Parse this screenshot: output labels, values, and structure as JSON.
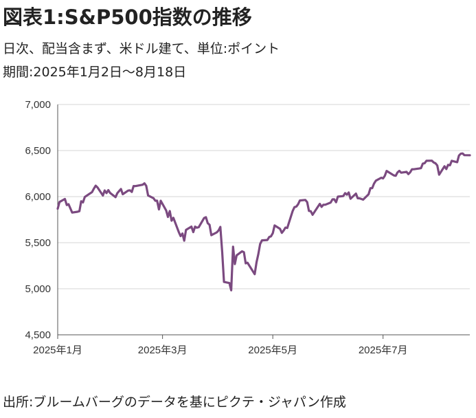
{
  "header": {
    "title": "図表1:S&P500指数の推移",
    "subtitle": "日次、配当含まず、米ドル建て、単位:ポイント",
    "period": "期間:2025年1月2日～8月18日"
  },
  "footer": {
    "source": "出所:ブルームバーグのデータを基にピクテ・ジャパン作成"
  },
  "colors": {
    "line": "#7b4a80",
    "axis": "#555555",
    "grid": "#d4d4d4"
  },
  "chart_data": {
    "type": "line",
    "ylim": [
      4500,
      7000
    ],
    "yticks": [
      4500,
      5000,
      5500,
      6000,
      6500,
      7000
    ],
    "ytick_labels": [
      "4,500",
      "5,000",
      "5,500",
      "6,000",
      "6,500",
      "7,000"
    ],
    "xlim": [
      "2025-01-02",
      "2025-08-18"
    ],
    "xticks": [
      {
        "date": "2025-01-01",
        "label": "2025年1月"
      },
      {
        "date": "2025-03-01",
        "label": "2025年3月"
      },
      {
        "date": "2025-05-01",
        "label": "2025年5月"
      },
      {
        "date": "2025-07-01",
        "label": "2025年7月"
      }
    ],
    "grid": "horizontal",
    "series": [
      {
        "points": [
          [
            "2025-01-02",
            5869
          ],
          [
            "2025-01-03",
            5942
          ],
          [
            "2025-01-06",
            5975
          ],
          [
            "2025-01-07",
            5909
          ],
          [
            "2025-01-08",
            5918
          ],
          [
            "2025-01-10",
            5827
          ],
          [
            "2025-01-13",
            5836
          ],
          [
            "2025-01-14",
            5842
          ],
          [
            "2025-01-15",
            5950
          ],
          [
            "2025-01-16",
            5937
          ],
          [
            "2025-01-17",
            5997
          ],
          [
            "2025-01-21",
            6049
          ],
          [
            "2025-01-22",
            6086
          ],
          [
            "2025-01-23",
            6119
          ],
          [
            "2025-01-24",
            6101
          ],
          [
            "2025-01-27",
            6012
          ],
          [
            "2025-01-28",
            6067
          ],
          [
            "2025-01-29",
            6039
          ],
          [
            "2025-01-30",
            6071
          ],
          [
            "2025-01-31",
            6040
          ],
          [
            "2025-02-03",
            5994
          ],
          [
            "2025-02-04",
            6037
          ],
          [
            "2025-02-05",
            6061
          ],
          [
            "2025-02-06",
            6083
          ],
          [
            "2025-02-07",
            6026
          ],
          [
            "2025-02-10",
            6066
          ],
          [
            "2025-02-11",
            6068
          ],
          [
            "2025-02-12",
            6051
          ],
          [
            "2025-02-13",
            6115
          ],
          [
            "2025-02-14",
            6114
          ],
          [
            "2025-02-18",
            6129
          ],
          [
            "2025-02-19",
            6144
          ],
          [
            "2025-02-20",
            6117
          ],
          [
            "2025-02-21",
            6013
          ],
          [
            "2025-02-24",
            5983
          ],
          [
            "2025-02-25",
            5955
          ],
          [
            "2025-02-26",
            5956
          ],
          [
            "2025-02-27",
            5861
          ],
          [
            "2025-02-28",
            5955
          ],
          [
            "2025-03-03",
            5850
          ],
          [
            "2025-03-04",
            5779
          ],
          [
            "2025-03-05",
            5843
          ],
          [
            "2025-03-06",
            5739
          ],
          [
            "2025-03-07",
            5770
          ],
          [
            "2025-03-10",
            5615
          ],
          [
            "2025-03-11",
            5572
          ],
          [
            "2025-03-12",
            5599
          ],
          [
            "2025-03-13",
            5522
          ],
          [
            "2025-03-14",
            5639
          ],
          [
            "2025-03-17",
            5675
          ],
          [
            "2025-03-18",
            5615
          ],
          [
            "2025-03-19",
            5675
          ],
          [
            "2025-03-20",
            5663
          ],
          [
            "2025-03-21",
            5668
          ],
          [
            "2025-03-24",
            5768
          ],
          [
            "2025-03-25",
            5777
          ],
          [
            "2025-03-26",
            5712
          ],
          [
            "2025-03-27",
            5693
          ],
          [
            "2025-03-28",
            5581
          ],
          [
            "2025-03-31",
            5612
          ],
          [
            "2025-04-01",
            5633
          ],
          [
            "2025-04-02",
            5671
          ],
          [
            "2025-04-03",
            5397
          ],
          [
            "2025-04-04",
            5074
          ],
          [
            "2025-04-07",
            5062
          ],
          [
            "2025-04-08",
            4983
          ],
          [
            "2025-04-09",
            5457
          ],
          [
            "2025-04-10",
            5268
          ],
          [
            "2025-04-11",
            5363
          ],
          [
            "2025-04-14",
            5406
          ],
          [
            "2025-04-15",
            5397
          ],
          [
            "2025-04-16",
            5276
          ],
          [
            "2025-04-17",
            5283
          ],
          [
            "2025-04-21",
            5158
          ],
          [
            "2025-04-22",
            5288
          ],
          [
            "2025-04-23",
            5376
          ],
          [
            "2025-04-24",
            5485
          ],
          [
            "2025-04-25",
            5525
          ],
          [
            "2025-04-28",
            5529
          ],
          [
            "2025-04-29",
            5561
          ],
          [
            "2025-04-30",
            5569
          ],
          [
            "2025-05-01",
            5604
          ],
          [
            "2025-05-02",
            5687
          ],
          [
            "2025-05-05",
            5650
          ],
          [
            "2025-05-06",
            5607
          ],
          [
            "2025-05-07",
            5631
          ],
          [
            "2025-05-08",
            5664
          ],
          [
            "2025-05-09",
            5660
          ],
          [
            "2025-05-12",
            5844
          ],
          [
            "2025-05-13",
            5886
          ],
          [
            "2025-05-14",
            5892
          ],
          [
            "2025-05-15",
            5917
          ],
          [
            "2025-05-16",
            5958
          ],
          [
            "2025-05-19",
            5964
          ],
          [
            "2025-05-20",
            5940
          ],
          [
            "2025-05-21",
            5845
          ],
          [
            "2025-05-22",
            5842
          ],
          [
            "2025-05-23",
            5803
          ],
          [
            "2025-05-27",
            5922
          ],
          [
            "2025-05-28",
            5889
          ],
          [
            "2025-05-29",
            5912
          ],
          [
            "2025-05-30",
            5912
          ],
          [
            "2025-06-02",
            5936
          ],
          [
            "2025-06-03",
            5970
          ],
          [
            "2025-06-04",
            5971
          ],
          [
            "2025-06-05",
            5939
          ],
          [
            "2025-06-06",
            6000
          ],
          [
            "2025-06-09",
            6006
          ],
          [
            "2025-06-10",
            6038
          ],
          [
            "2025-06-11",
            6022
          ],
          [
            "2025-06-12",
            6045
          ],
          [
            "2025-06-13",
            5977
          ],
          [
            "2025-06-16",
            6033
          ],
          [
            "2025-06-17",
            5982
          ],
          [
            "2025-06-18",
            5981
          ],
          [
            "2025-06-20",
            5967
          ],
          [
            "2025-06-23",
            6025
          ],
          [
            "2025-06-24",
            6092
          ],
          [
            "2025-06-25",
            6092
          ],
          [
            "2025-06-26",
            6141
          ],
          [
            "2025-06-27",
            6173
          ],
          [
            "2025-06-30",
            6205
          ],
          [
            "2025-07-01",
            6198
          ],
          [
            "2025-07-02",
            6227
          ],
          [
            "2025-07-03",
            6279
          ],
          [
            "2025-07-07",
            6230
          ],
          [
            "2025-07-08",
            6226
          ],
          [
            "2025-07-09",
            6263
          ],
          [
            "2025-07-10",
            6280
          ],
          [
            "2025-07-11",
            6260
          ],
          [
            "2025-07-14",
            6269
          ],
          [
            "2025-07-15",
            6244
          ],
          [
            "2025-07-16",
            6264
          ],
          [
            "2025-07-17",
            6297
          ],
          [
            "2025-07-18",
            6297
          ],
          [
            "2025-07-21",
            6305
          ],
          [
            "2025-07-22",
            6309
          ],
          [
            "2025-07-23",
            6359
          ],
          [
            "2025-07-24",
            6363
          ],
          [
            "2025-07-25",
            6389
          ],
          [
            "2025-07-28",
            6390
          ],
          [
            "2025-07-29",
            6371
          ],
          [
            "2025-07-30",
            6362
          ],
          [
            "2025-07-31",
            6339
          ],
          [
            "2025-08-01",
            6238
          ],
          [
            "2025-08-04",
            6330
          ],
          [
            "2025-08-05",
            6299
          ],
          [
            "2025-08-06",
            6345
          ],
          [
            "2025-08-07",
            6340
          ],
          [
            "2025-08-08",
            6389
          ],
          [
            "2025-08-11",
            6374
          ],
          [
            "2025-08-12",
            6446
          ],
          [
            "2025-08-13",
            6466
          ],
          [
            "2025-08-14",
            6469
          ],
          [
            "2025-08-15",
            6450
          ],
          [
            "2025-08-18",
            6449
          ]
        ]
      }
    ]
  }
}
